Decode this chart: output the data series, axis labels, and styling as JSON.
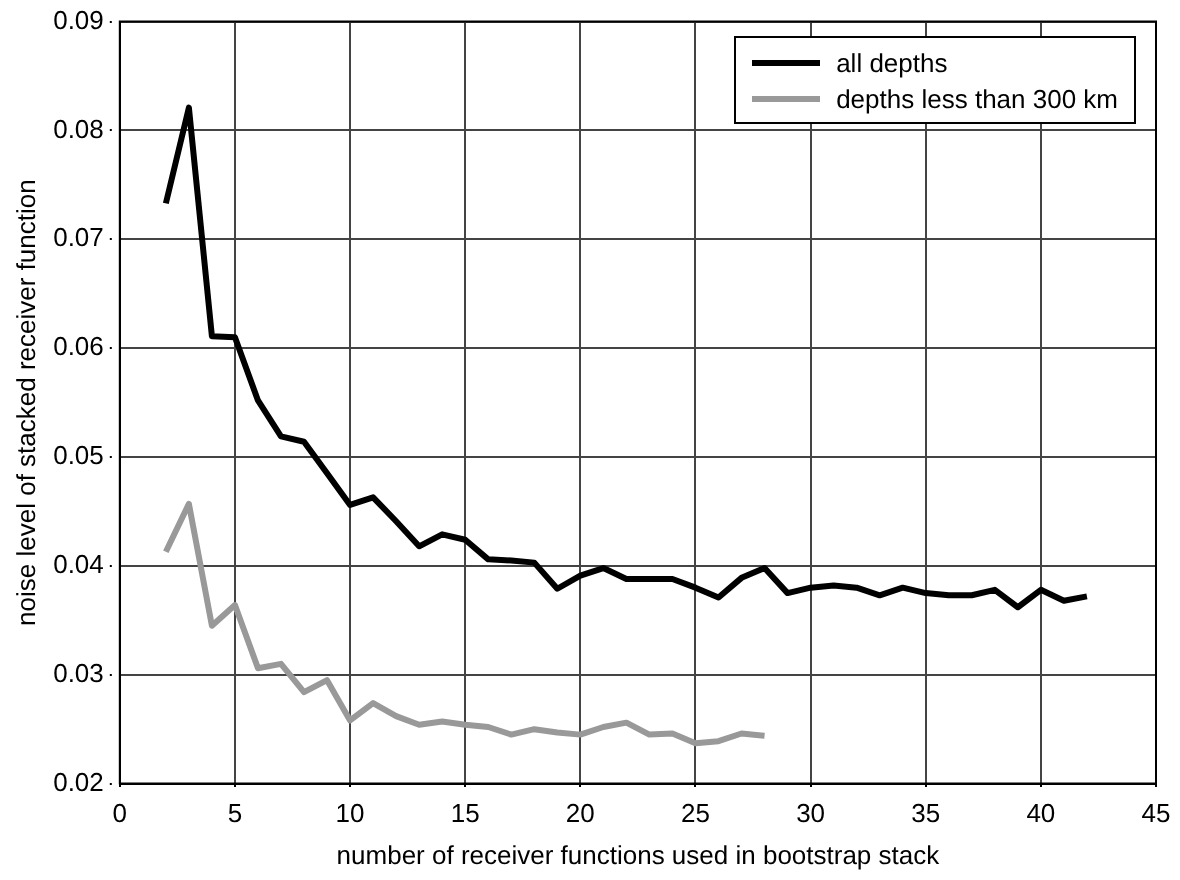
{
  "chart_data": {
    "type": "line",
    "xlabel": "number of receiver functions used in bootstrap stack",
    "ylabel": "noise level of stacked receiver function",
    "xlim": [
      0,
      45
    ],
    "xticks": [
      0,
      5,
      10,
      15,
      20,
      25,
      30,
      35,
      40,
      45
    ],
    "ylim": [
      0.02,
      0.09
    ],
    "yticks": [
      0.02,
      0.03,
      0.04,
      0.05,
      0.06,
      0.07,
      0.08,
      0.09
    ],
    "grid": true,
    "legend": "top right",
    "marker": "none",
    "line_style": "solid",
    "series": [
      {
        "name": "all depths",
        "color": "#000000",
        "x": [
          2,
          3,
          4,
          5,
          6,
          7,
          8,
          9,
          10,
          11,
          12,
          13,
          14,
          15,
          16,
          17,
          18,
          19,
          20,
          21,
          22,
          23,
          24,
          25,
          26,
          27,
          28,
          29,
          30,
          31,
          32,
          33,
          34,
          35,
          36,
          37,
          38,
          39,
          40,
          41,
          42
        ],
        "values": [
          0.0733,
          0.0821,
          0.0611,
          0.061,
          0.0552,
          0.0519,
          0.0514,
          0.0485,
          0.0456,
          0.0463,
          0.0441,
          0.0418,
          0.0429,
          0.0424,
          0.0406,
          0.0405,
          0.0403,
          0.0379,
          0.0391,
          0.0398,
          0.0388,
          0.0388,
          0.0388,
          0.038,
          0.0371,
          0.0389,
          0.0398,
          0.0375,
          0.038,
          0.0382,
          0.038,
          0.0373,
          0.038,
          0.0375,
          0.0373,
          0.0373,
          0.0378,
          0.0362,
          0.0378,
          0.0368,
          0.0372
        ]
      },
      {
        "name": "depths less than 300 km",
        "color": "#999999",
        "x": [
          2,
          3,
          4,
          5,
          6,
          7,
          8,
          9,
          10,
          11,
          12,
          13,
          14,
          15,
          16,
          17,
          18,
          19,
          20,
          21,
          22,
          23,
          24,
          25,
          26,
          27,
          28
        ],
        "values": [
          0.0413,
          0.0457,
          0.0345,
          0.0364,
          0.0306,
          0.031,
          0.0284,
          0.0295,
          0.0258,
          0.0274,
          0.0262,
          0.0254,
          0.0257,
          0.0254,
          0.0252,
          0.0245,
          0.025,
          0.0247,
          0.0245,
          0.0252,
          0.0256,
          0.0245,
          0.0246,
          0.0237,
          0.0239,
          0.0246,
          0.0244
        ]
      }
    ]
  }
}
